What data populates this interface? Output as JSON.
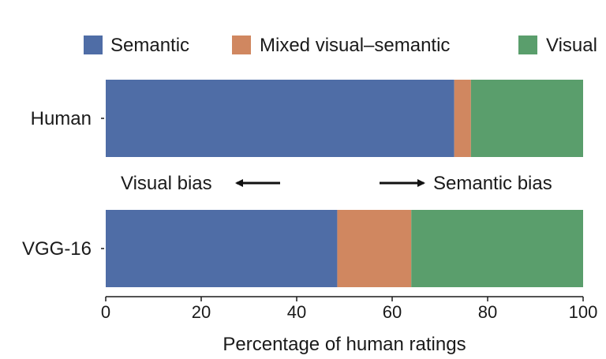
{
  "chart_data": {
    "type": "bar",
    "orientation": "horizontal",
    "stacked": true,
    "categories": [
      "Human",
      "VGG-16"
    ],
    "series": [
      {
        "name": "Semantic",
        "values": [
          73,
          48.5
        ],
        "color": "#4f6da6"
      },
      {
        "name": "Mixed visual–semantic",
        "values": [
          3.5,
          15.5
        ],
        "color": "#d08760"
      },
      {
        "name": "Visual",
        "values": [
          23.5,
          36
        ],
        "color": "#5a9e6c"
      }
    ],
    "xlabel": "Percentage of human ratings",
    "ylabel": "",
    "xlim": [
      0,
      100
    ],
    "xticks": [
      0,
      20,
      40,
      60,
      80,
      100
    ],
    "grid": false,
    "legend_position": "top",
    "annotations": [
      {
        "text": "Visual bias",
        "arrow": "left"
      },
      {
        "text": "Semantic bias",
        "arrow": "right"
      }
    ]
  }
}
